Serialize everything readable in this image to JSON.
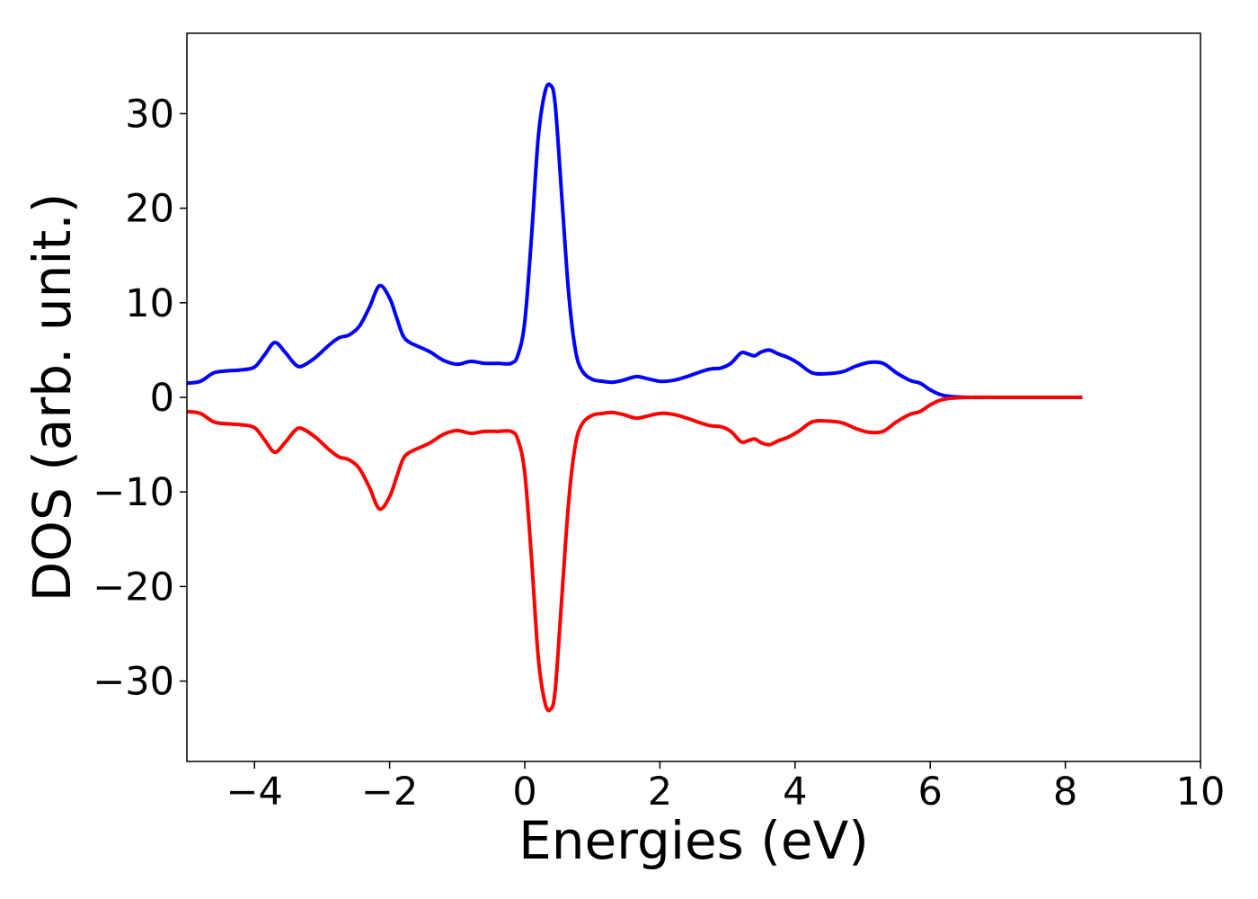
{
  "chart_data": {
    "type": "line",
    "title": "",
    "xlabel": "Energies (eV)",
    "ylabel": "DOS (arb. unit.)",
    "xlim": [
      -5,
      10
    ],
    "ylim": [
      -38.5,
      38.5
    ],
    "xticks": [
      -4,
      -2,
      0,
      2,
      4,
      6,
      8,
      10
    ],
    "xtick_labels": [
      "−4",
      "−2",
      "0",
      "2",
      "4",
      "6",
      "8",
      "10"
    ],
    "yticks": [
      -30,
      -20,
      -10,
      0,
      10,
      20,
      30
    ],
    "ytick_labels": [
      "−30",
      "−20",
      "−10",
      "0",
      "10",
      "20",
      "30"
    ],
    "grid": false,
    "legend": "none",
    "series": [
      {
        "color": "#0000ff",
        "x": [
          -5.0,
          -4.8,
          -4.6,
          -4.4,
          -4.2,
          -4.0,
          -3.85,
          -3.7,
          -3.55,
          -3.4,
          -3.3,
          -3.1,
          -2.9,
          -2.75,
          -2.6,
          -2.45,
          -2.3,
          -2.15,
          -2.0,
          -1.9,
          -1.8,
          -1.7,
          -1.55,
          -1.4,
          -1.2,
          -1.0,
          -0.8,
          -0.6,
          -0.4,
          -0.2,
          -0.1,
          0.0,
          0.1,
          0.2,
          0.3,
          0.38,
          0.45,
          0.55,
          0.65,
          0.75,
          0.85,
          1.0,
          1.15,
          1.3,
          1.45,
          1.65,
          1.8,
          2.0,
          2.2,
          2.4,
          2.6,
          2.75,
          2.9,
          3.05,
          3.2,
          3.3,
          3.4,
          3.5,
          3.62,
          3.75,
          3.9,
          4.05,
          4.25,
          4.45,
          4.7,
          4.9,
          5.1,
          5.3,
          5.5,
          5.7,
          5.85,
          6.0,
          6.15,
          6.3,
          6.6,
          7.0,
          7.5,
          8.0,
          8.25
        ],
        "y": [
          1.5,
          1.7,
          2.6,
          2.8,
          2.9,
          3.2,
          4.5,
          5.8,
          4.8,
          3.5,
          3.3,
          4.2,
          5.5,
          6.3,
          6.6,
          7.5,
          9.5,
          11.8,
          10.5,
          8.5,
          6.5,
          5.8,
          5.3,
          4.8,
          3.9,
          3.5,
          3.8,
          3.6,
          3.6,
          3.6,
          4.5,
          8.0,
          17.0,
          27.5,
          32.3,
          33.0,
          31.0,
          21.0,
          11.0,
          5.0,
          2.8,
          1.9,
          1.7,
          1.6,
          1.8,
          2.2,
          2.0,
          1.7,
          1.8,
          2.2,
          2.7,
          3.0,
          3.1,
          3.6,
          4.7,
          4.6,
          4.4,
          4.8,
          5.0,
          4.6,
          4.2,
          3.6,
          2.6,
          2.5,
          2.7,
          3.3,
          3.7,
          3.6,
          2.6,
          1.8,
          1.5,
          0.8,
          0.3,
          0.1,
          0.0,
          0.0,
          0.0,
          0.0,
          0.0
        ]
      },
      {
        "color": "#ff0000",
        "x": [
          -5.0,
          -4.8,
          -4.6,
          -4.4,
          -4.2,
          -4.0,
          -3.85,
          -3.7,
          -3.55,
          -3.4,
          -3.3,
          -3.1,
          -2.9,
          -2.75,
          -2.6,
          -2.45,
          -2.3,
          -2.15,
          -2.0,
          -1.9,
          -1.8,
          -1.7,
          -1.55,
          -1.4,
          -1.2,
          -1.0,
          -0.8,
          -0.6,
          -0.4,
          -0.2,
          -0.1,
          0.0,
          0.1,
          0.2,
          0.3,
          0.38,
          0.45,
          0.55,
          0.65,
          0.75,
          0.85,
          1.0,
          1.15,
          1.3,
          1.45,
          1.65,
          1.8,
          2.0,
          2.2,
          2.4,
          2.6,
          2.75,
          2.9,
          3.05,
          3.2,
          3.3,
          3.4,
          3.5,
          3.62,
          3.75,
          3.9,
          4.05,
          4.25,
          4.45,
          4.7,
          4.9,
          5.1,
          5.3,
          5.5,
          5.7,
          5.85,
          6.0,
          6.15,
          6.3,
          6.6,
          7.0,
          7.5,
          8.0,
          8.25
        ],
        "y": [
          -1.5,
          -1.7,
          -2.6,
          -2.8,
          -2.9,
          -3.2,
          -4.5,
          -5.8,
          -4.8,
          -3.5,
          -3.3,
          -4.2,
          -5.5,
          -6.3,
          -6.6,
          -7.5,
          -9.5,
          -11.8,
          -10.5,
          -8.5,
          -6.5,
          -5.8,
          -5.3,
          -4.8,
          -3.9,
          -3.5,
          -3.8,
          -3.6,
          -3.6,
          -3.6,
          -4.5,
          -8.0,
          -17.0,
          -27.5,
          -32.3,
          -33.0,
          -31.0,
          -21.0,
          -11.0,
          -5.0,
          -2.8,
          -1.9,
          -1.7,
          -1.6,
          -1.8,
          -2.2,
          -2.0,
          -1.7,
          -1.8,
          -2.2,
          -2.7,
          -3.0,
          -3.1,
          -3.6,
          -4.7,
          -4.6,
          -4.4,
          -4.8,
          -5.0,
          -4.6,
          -4.2,
          -3.6,
          -2.6,
          -2.5,
          -2.7,
          -3.3,
          -3.7,
          -3.6,
          -2.6,
          -1.8,
          -1.5,
          -0.8,
          -0.3,
          -0.1,
          0.0,
          0.0,
          0.0,
          0.0,
          0.0
        ]
      }
    ]
  }
}
